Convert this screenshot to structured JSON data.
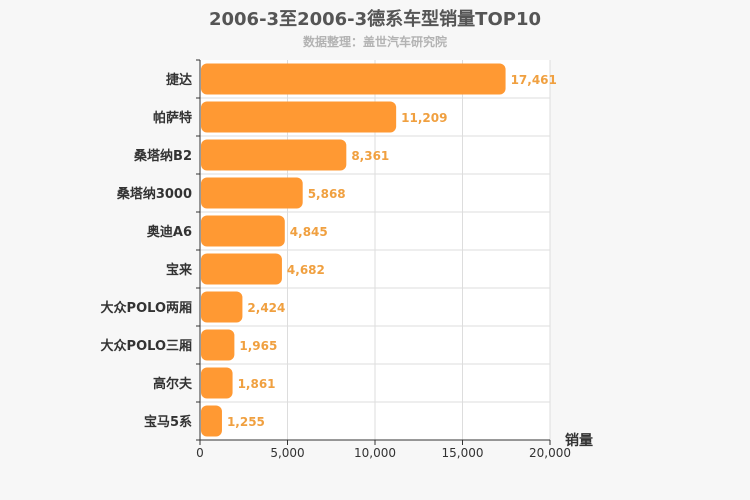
{
  "chart_data": {
    "type": "bar",
    "orientation": "horizontal",
    "title": "2006-3至2006-3德系车型销量TOP10",
    "subtitle": "数据整理：盖世汽车研究院",
    "categories": [
      "捷达",
      "帕萨特",
      "桑塔纳B2",
      "桑塔纳3000",
      "奥迪A6",
      "宝来",
      "大众POLO两厢",
      "大众POLO三厢",
      "高尔夫",
      "宝马5系"
    ],
    "values": [
      17461,
      11209,
      8361,
      5868,
      4845,
      4682,
      2424,
      1965,
      1861,
      1255
    ],
    "value_labels": [
      "17,461",
      "11,209",
      "8,361",
      "5,868",
      "4,845",
      "4,682",
      "2,424",
      "1,965",
      "1,861",
      "1,255"
    ],
    "xlabel": "销量",
    "ylabel": "",
    "xlim": [
      0,
      20000
    ],
    "ticks": [
      0,
      5000,
      10000,
      15000,
      20000
    ],
    "tick_labels": [
      "0",
      "5,000",
      "10,000",
      "15,000",
      "20,000"
    ],
    "grid": true,
    "bar_color": "#ff9933",
    "label_color": "#f0a040"
  }
}
